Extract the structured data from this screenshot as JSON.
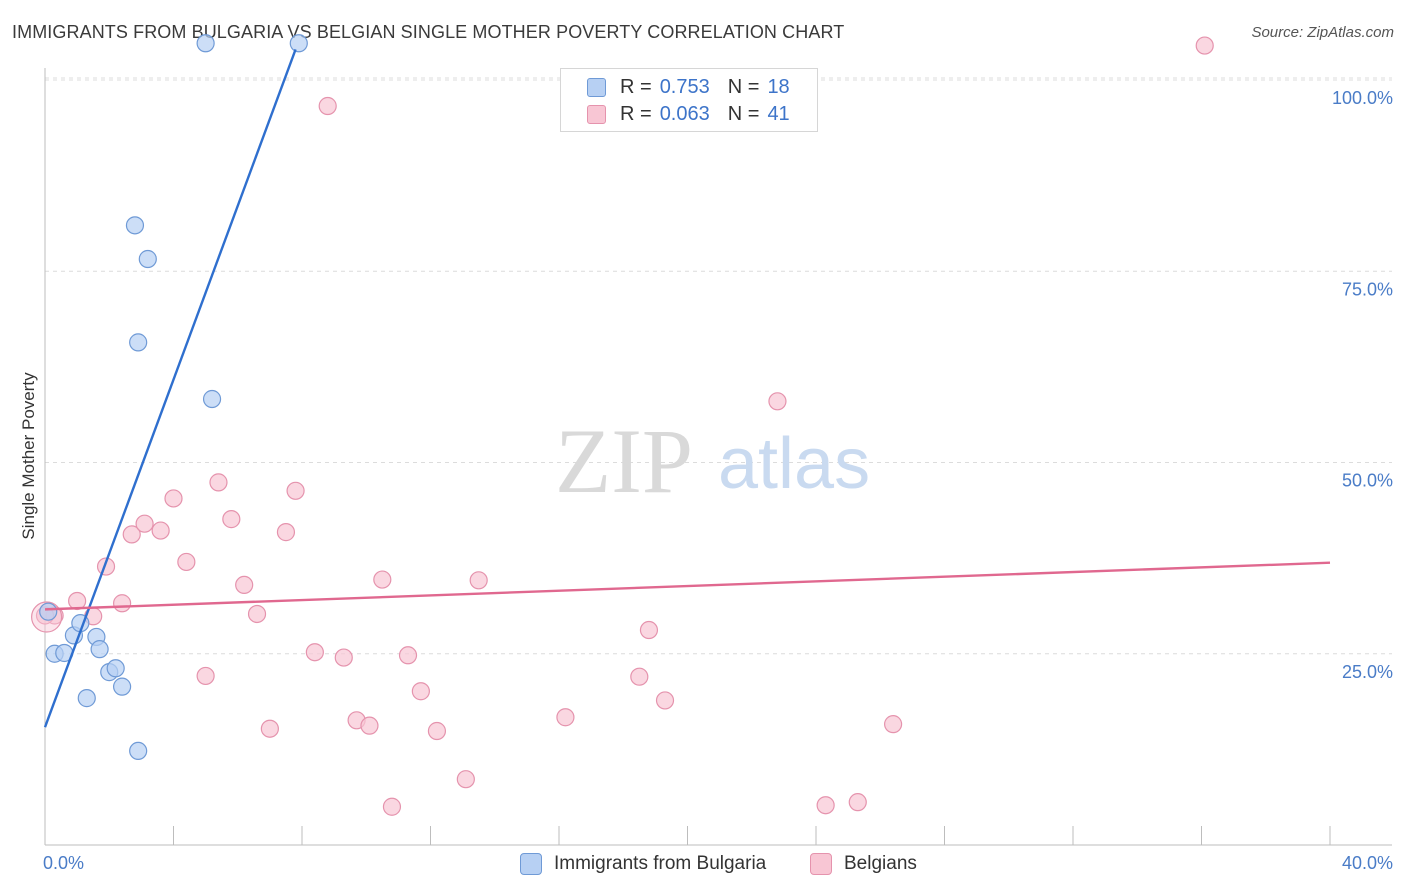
{
  "header": {
    "title": "IMMIGRANTS FROM BULGARIA VS BELGIAN SINGLE MOTHER POVERTY CORRELATION CHART",
    "source": "Source: ZipAtlas.com"
  },
  "watermark": {
    "zip": "ZIP",
    "atlas": "atlas"
  },
  "legend": {
    "rows": [
      {
        "r_label": "R =",
        "r_value": "0.753",
        "n_label": "N =",
        "n_value": "18"
      },
      {
        "r_label": "R =",
        "r_value": "0.063",
        "n_label": "N =",
        "n_value": "41"
      }
    ]
  },
  "bottom_legend": {
    "series1": "Immigrants from Bulgaria",
    "series2": "Belgians"
  },
  "colors": {
    "bulgaria_fill": "#b7d0f3",
    "bulgaria_stroke": "#6f9ad6",
    "bulgaria_line": "#2f6fce",
    "belgian_fill": "#f8c6d4",
    "belgian_stroke": "#e593ad",
    "belgian_line": "#e0688f",
    "tick_label": "#4a7cc7",
    "grid": "#dcdcdc"
  },
  "chart_data": {
    "type": "scatter",
    "title": "IMMIGRANTS FROM BULGARIA VS BELGIAN SINGLE MOTHER POVERTY CORRELATION CHART",
    "xlabel": "",
    "ylabel": "Single Mother Poverty",
    "xlim": [
      0,
      40
    ],
    "ylim": [
      0,
      100
    ],
    "x_tick_labels": [
      "0.0%",
      "40.0%"
    ],
    "y_tick_values": [
      25,
      50,
      75,
      100
    ],
    "y_tick_labels": [
      "25.0%",
      "50.0%",
      "75.0%",
      "100.0%"
    ],
    "legend_position": "top-center",
    "series": [
      {
        "name": "Immigrants from Bulgaria",
        "r": 0.753,
        "n": 18,
        "points": [
          {
            "x": 0.1,
            "y": 30.5
          },
          {
            "x": 0.3,
            "y": 25.0
          },
          {
            "x": 0.6,
            "y": 25.1
          },
          {
            "x": 0.9,
            "y": 27.4
          },
          {
            "x": 1.1,
            "y": 29.0
          },
          {
            "x": 1.3,
            "y": 19.2
          },
          {
            "x": 1.6,
            "y": 27.2
          },
          {
            "x": 1.7,
            "y": 25.6
          },
          {
            "x": 2.0,
            "y": 22.6
          },
          {
            "x": 2.2,
            "y": 23.1
          },
          {
            "x": 2.4,
            "y": 20.7
          },
          {
            "x": 2.9,
            "y": 12.3
          },
          {
            "x": 2.9,
            "y": 65.7
          },
          {
            "x": 2.8,
            "y": 81.0
          },
          {
            "x": 3.2,
            "y": 76.6
          },
          {
            "x": 5.2,
            "y": 58.3
          },
          {
            "x": 5.0,
            "y": 105.0
          },
          {
            "x": 7.9,
            "y": 105.0
          }
        ],
        "trend": {
          "x1": 0.0,
          "y1": 15.4,
          "x2": 7.8,
          "y2": 104.0
        }
      },
      {
        "name": "Belgians",
        "r": 0.063,
        "n": 41,
        "points": [
          {
            "x": 0.1,
            "y": 30.5
          },
          {
            "x": 0.3,
            "y": 30.0
          },
          {
            "x": 1.0,
            "y": 31.9
          },
          {
            "x": 1.5,
            "y": 29.9
          },
          {
            "x": 1.9,
            "y": 36.4
          },
          {
            "x": 2.4,
            "y": 31.6
          },
          {
            "x": 2.7,
            "y": 40.6
          },
          {
            "x": 3.1,
            "y": 42.0
          },
          {
            "x": 3.6,
            "y": 41.1
          },
          {
            "x": 4.0,
            "y": 45.3
          },
          {
            "x": 4.4,
            "y": 37.0
          },
          {
            "x": 5.0,
            "y": 22.1
          },
          {
            "x": 5.4,
            "y": 47.4
          },
          {
            "x": 5.8,
            "y": 42.6
          },
          {
            "x": 6.2,
            "y": 34.0
          },
          {
            "x": 6.6,
            "y": 30.2
          },
          {
            "x": 7.0,
            "y": 15.2
          },
          {
            "x": 7.5,
            "y": 40.9
          },
          {
            "x": 7.8,
            "y": 46.3
          },
          {
            "x": 8.4,
            "y": 25.2
          },
          {
            "x": 8.8,
            "y": 96.6
          },
          {
            "x": 9.3,
            "y": 24.5
          },
          {
            "x": 9.7,
            "y": 16.3
          },
          {
            "x": 10.1,
            "y": 15.6
          },
          {
            "x": 10.5,
            "y": 34.7
          },
          {
            "x": 10.8,
            "y": 5.0
          },
          {
            "x": 11.3,
            "y": 24.8
          },
          {
            "x": 11.7,
            "y": 20.1
          },
          {
            "x": 12.2,
            "y": 14.9
          },
          {
            "x": 13.1,
            "y": 8.6
          },
          {
            "x": 13.5,
            "y": 34.6
          },
          {
            "x": 16.2,
            "y": 16.7
          },
          {
            "x": 18.5,
            "y": 22.0
          },
          {
            "x": 18.8,
            "y": 28.1
          },
          {
            "x": 19.3,
            "y": 18.9
          },
          {
            "x": 22.8,
            "y": 58.0
          },
          {
            "x": 24.3,
            "y": 5.2
          },
          {
            "x": 25.3,
            "y": 5.6
          },
          {
            "x": 26.4,
            "y": 15.8
          },
          {
            "x": 36.1,
            "y": 104.5
          },
          {
            "x": 0.0,
            "y": 30.0
          }
        ],
        "trend": {
          "x1": 0.0,
          "y1": 30.8,
          "x2": 40.0,
          "y2": 36.9
        }
      }
    ]
  }
}
